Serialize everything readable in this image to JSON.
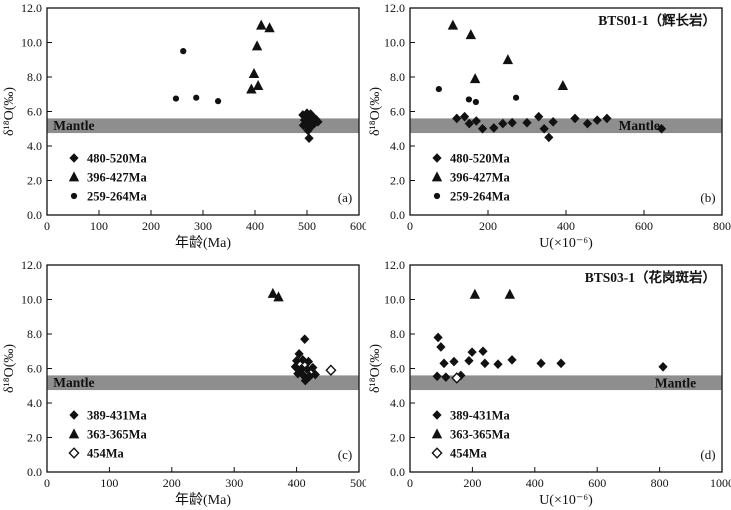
{
  "figure": {
    "background": "#ffffff",
    "border_color": "#c6c6c6",
    "marker_color": "#111111",
    "band_color": "#8e8e8e"
  },
  "chart_data": [
    {
      "id": "a",
      "type": "scatter",
      "panel_label": "(a)",
      "title": "",
      "xlabel": "年龄(Ma)",
      "ylabel": "δ¹⁸O(‰)",
      "xlim": [
        0,
        600
      ],
      "xticks": [
        0,
        100,
        200,
        300,
        400,
        500,
        600
      ],
      "ylim": [
        0,
        12
      ],
      "yticks": [
        0,
        2,
        4,
        6,
        8,
        10,
        12
      ],
      "mantle_band": [
        4.75,
        5.6
      ],
      "mantle_label": {
        "text": "Mantle",
        "x": 12,
        "y": 5.2
      },
      "legend": [
        {
          "marker": "diamond",
          "label": "480-520Ma"
        },
        {
          "marker": "triangle",
          "label": "396-427Ma"
        },
        {
          "marker": "circle",
          "label": "259-264Ma"
        }
      ],
      "series": [
        {
          "name": "480-520Ma",
          "marker": "diamond",
          "points": [
            [
              492,
              5.8
            ],
            [
              500,
              5.9
            ],
            [
              507,
              5.85
            ],
            [
              514,
              5.6
            ],
            [
              495,
              5.5
            ],
            [
              502,
              5.5
            ],
            [
              509,
              5.45
            ],
            [
              517,
              5.55
            ],
            [
              493,
              5.2
            ],
            [
              500,
              5.15
            ],
            [
              507,
              5.1
            ],
            [
              514,
              5.3
            ],
            [
              521,
              5.4
            ],
            [
              502,
              4.9
            ],
            [
              504,
              4.45
            ]
          ]
        },
        {
          "name": "396-427Ma",
          "marker": "triangle",
          "points": [
            [
              393,
              7.3
            ],
            [
              406,
              7.5
            ],
            [
              398,
              8.2
            ],
            [
              404,
              9.8
            ],
            [
              412,
              11.0
            ],
            [
              428,
              10.85
            ]
          ]
        },
        {
          "name": "259-264Ma",
          "marker": "circle",
          "points": [
            [
              262,
              9.5
            ],
            [
              248,
              6.75
            ],
            [
              287,
              6.8
            ],
            [
              329,
              6.6
            ]
          ]
        }
      ]
    },
    {
      "id": "b",
      "type": "scatter",
      "panel_label": "(b)",
      "title": "BTS01-1（辉长岩）",
      "xlabel": "U(×10⁻⁶)",
      "ylabel": "δ¹⁸O(‰)",
      "xlim": [
        0,
        800
      ],
      "xticks": [
        0,
        200,
        400,
        600,
        800
      ],
      "ylim": [
        0,
        12
      ],
      "yticks": [
        0,
        2,
        4,
        6,
        8,
        10,
        12
      ],
      "mantle_band": [
        4.75,
        5.6
      ],
      "mantle_label": {
        "text": "Mantle",
        "x": 535,
        "y": 5.2
      },
      "legend": [
        {
          "marker": "diamond",
          "label": "480-520Ma"
        },
        {
          "marker": "triangle",
          "label": "396-427Ma"
        },
        {
          "marker": "circle",
          "label": "259-264Ma"
        }
      ],
      "series": [
        {
          "name": "480-520Ma",
          "marker": "diamond",
          "points": [
            [
              120,
              5.6
            ],
            [
              140,
              5.7
            ],
            [
              152,
              5.3
            ],
            [
              170,
              5.45
            ],
            [
              186,
              5.0
            ],
            [
              215,
              5.05
            ],
            [
              238,
              5.3
            ],
            [
              262,
              5.35
            ],
            [
              300,
              5.35
            ],
            [
              330,
              5.7
            ],
            [
              344,
              5.0
            ],
            [
              356,
              4.5
            ],
            [
              367,
              5.4
            ],
            [
              423,
              5.6
            ],
            [
              455,
              5.3
            ],
            [
              480,
              5.5
            ],
            [
              505,
              5.6
            ],
            [
              645,
              5.0
            ]
          ]
        },
        {
          "name": "396-427Ma",
          "marker": "triangle",
          "points": [
            [
              110,
              11.0
            ],
            [
              156,
              10.45
            ],
            [
              251,
              9.0
            ],
            [
              167,
              7.9
            ],
            [
              392,
              7.5
            ]
          ]
        },
        {
          "name": "259-264Ma",
          "marker": "circle",
          "points": [
            [
              74,
              7.3
            ],
            [
              151,
              6.7
            ],
            [
              169,
              6.55
            ],
            [
              272,
              6.8
            ]
          ]
        }
      ]
    },
    {
      "id": "c",
      "type": "scatter",
      "panel_label": "(c)",
      "title": "",
      "xlabel": "年龄(Ma)",
      "ylabel": "δ¹⁸O(‰)",
      "xlim": [
        0,
        500
      ],
      "xticks": [
        0,
        100,
        200,
        300,
        400,
        500
      ],
      "ylim": [
        0,
        12
      ],
      "yticks": [
        0,
        2,
        4,
        6,
        8,
        10,
        12
      ],
      "mantle_band": [
        4.75,
        5.6
      ],
      "mantle_label": {
        "text": "Mantle",
        "x": 10,
        "y": 5.2
      },
      "legend": [
        {
          "marker": "diamond",
          "label": "389-431Ma"
        },
        {
          "marker": "triangle",
          "label": "363-365Ma"
        },
        {
          "marker": "open-diamond",
          "label": "454Ma"
        }
      ],
      "series": [
        {
          "name": "389-431Ma",
          "marker": "diamond",
          "points": [
            [
              413,
              7.7
            ],
            [
              404,
              6.85
            ],
            [
              400,
              6.45
            ],
            [
              410,
              6.5
            ],
            [
              419,
              6.4
            ],
            [
              398,
              6.1
            ],
            [
              408,
              6.0
            ],
            [
              417,
              5.95
            ],
            [
              426,
              6.05
            ],
            [
              402,
              5.7
            ],
            [
              411,
              5.6
            ],
            [
              421,
              5.55
            ],
            [
              430,
              5.65
            ],
            [
              414,
              5.3
            ]
          ]
        },
        {
          "name": "363-365Ma",
          "marker": "triangle",
          "points": [
            [
              362,
              10.35
            ],
            [
              371,
              10.15
            ]
          ]
        },
        {
          "name": "454Ma",
          "marker": "open-diamond",
          "points": [
            [
              455,
              5.9
            ]
          ]
        }
      ]
    },
    {
      "id": "d",
      "type": "scatter",
      "panel_label": "(d)",
      "title": "BTS03-1（花岗斑岩）",
      "xlabel": "U(×10⁻⁶)",
      "ylabel": "δ¹⁸O(‰)",
      "xlim": [
        0,
        1000
      ],
      "xticks": [
        0,
        200,
        400,
        600,
        800,
        1000
      ],
      "ylim": [
        0,
        12
      ],
      "yticks": [
        0,
        2,
        4,
        6,
        8,
        10,
        12
      ],
      "mantle_band": [
        4.75,
        5.6
      ],
      "mantle_label": {
        "text": "Mantle",
        "x": 785,
        "y": 5.15
      },
      "legend": [
        {
          "marker": "diamond",
          "label": "389-431Ma"
        },
        {
          "marker": "triangle",
          "label": "363-365Ma"
        },
        {
          "marker": "open-diamond",
          "label": "454Ma"
        }
      ],
      "series": [
        {
          "name": "389-431Ma",
          "marker": "diamond",
          "points": [
            [
              90,
              7.8
            ],
            [
              99,
              7.25
            ],
            [
              199,
              6.95
            ],
            [
              234,
              7.0
            ],
            [
              109,
              6.3
            ],
            [
              141,
              6.4
            ],
            [
              189,
              6.45
            ],
            [
              240,
              6.3
            ],
            [
              282,
              6.25
            ],
            [
              327,
              6.5
            ],
            [
              87,
              5.55
            ],
            [
              115,
              5.5
            ],
            [
              163,
              5.6
            ],
            [
              420,
              6.3
            ],
            [
              484,
              6.3
            ],
            [
              811,
              6.1
            ]
          ]
        },
        {
          "name": "363-365Ma",
          "marker": "triangle",
          "points": [
            [
              208,
              10.3
            ],
            [
              320,
              10.3
            ]
          ]
        },
        {
          "name": "454Ma",
          "marker": "open-diamond",
          "points": [
            [
              150,
              5.45
            ]
          ]
        }
      ]
    }
  ]
}
